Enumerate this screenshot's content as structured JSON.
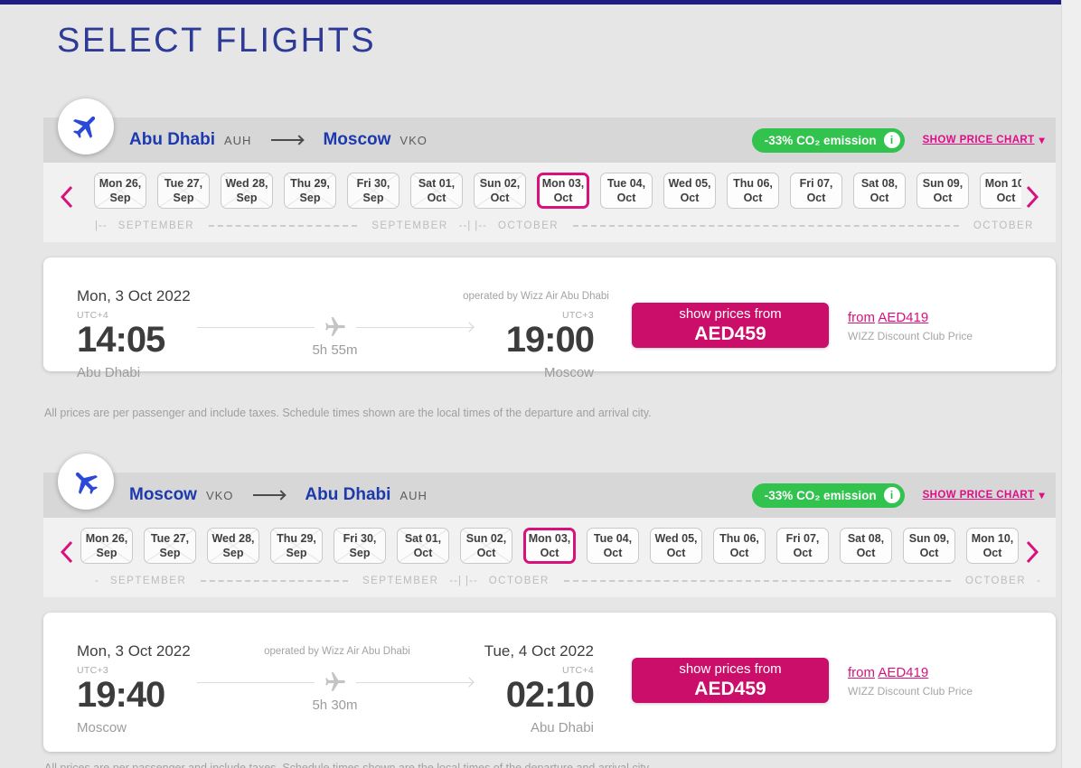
{
  "page": {
    "title": "SELECT FLIGHTS",
    "disclaimer": "All prices are per passenger and include taxes. Schedule times shown are the local times of the departure and arrival city."
  },
  "icons": {
    "info": "i",
    "caret_down": "▾"
  },
  "colors": {
    "accent_pink": "#d8127d",
    "button_pink": "#cb0e6a",
    "badge_green": "#32c24e",
    "navy": "#2d3a96"
  },
  "sections": [
    {
      "route": {
        "origin_city": "Abu Dhabi",
        "origin_code": "AUH",
        "dest_city": "Moscow",
        "dest_code": "VKO"
      },
      "co2_badge": "-33% CO₂ emission",
      "show_price_chart": "SHOW PRICE CHART",
      "dates": [
        {
          "day": "Mon 26,",
          "month": "Sep",
          "state": "crossed"
        },
        {
          "day": "Tue 27,",
          "month": "Sep",
          "state": "crossed"
        },
        {
          "day": "Wed 28,",
          "month": "Sep",
          "state": "crossed"
        },
        {
          "day": "Thu 29,",
          "month": "Sep",
          "state": "crossed"
        },
        {
          "day": "Fri 30,",
          "month": "Sep",
          "state": "crossed"
        },
        {
          "day": "Sat 01,",
          "month": "Oct",
          "state": "crossed"
        },
        {
          "day": "Sun 02,",
          "month": "Oct",
          "state": "crossed"
        },
        {
          "day": "Mon 03,",
          "month": "Oct",
          "state": "selected"
        },
        {
          "day": "Tue 04,",
          "month": "Oct",
          "state": "normal"
        },
        {
          "day": "Wed 05,",
          "month": "Oct",
          "state": "normal"
        },
        {
          "day": "Thu 06,",
          "month": "Oct",
          "state": "normal"
        },
        {
          "day": "Fri 07,",
          "month": "Oct",
          "state": "normal"
        },
        {
          "day": "Sat 08,",
          "month": "Oct",
          "state": "normal"
        },
        {
          "day": "Sun 09,",
          "month": "Oct",
          "state": "normal"
        },
        {
          "day": "Mon 10,",
          "month": "Oct",
          "state": "normal"
        }
      ],
      "timeline": [
        {
          "type": "marker",
          "text": "|--"
        },
        {
          "type": "label",
          "text": "SEPTEMBER"
        },
        {
          "type": "dash",
          "flex": 2
        },
        {
          "type": "label",
          "text": "SEPTEMBER"
        },
        {
          "type": "marker",
          "text": "--|"
        },
        {
          "type": "marker",
          "text": "|--"
        },
        {
          "type": "label",
          "text": "OCTOBER"
        },
        {
          "type": "dash",
          "flex": 5.2
        },
        {
          "type": "label",
          "text": "OCTOBER"
        }
      ],
      "flight": {
        "departure": {
          "date": "Mon, 3 Oct 2022",
          "utc": "UTC+4",
          "time": "14:05",
          "city": "Abu Dhabi"
        },
        "arrival": {
          "date": "",
          "utc": "UTC+3",
          "time": "19:00",
          "city": "Moscow"
        },
        "operated_by": "operated by Wizz Air Abu Dhabi",
        "duration": "5h 55m",
        "price_button": {
          "label": "show prices from",
          "price": "AED459"
        },
        "club_price": {
          "prefix": "from",
          "price": "AED419",
          "label": "WIZZ Discount Club Price"
        }
      }
    },
    {
      "route": {
        "origin_city": "Moscow",
        "origin_code": "VKO",
        "dest_city": "Abu Dhabi",
        "dest_code": "AUH"
      },
      "co2_badge": "-33% CO₂ emission",
      "show_price_chart": "SHOW PRICE CHART",
      "dates": [
        {
          "day": "Mon 26,",
          "month": "Sep",
          "state": "crossed"
        },
        {
          "day": "Tue 27,",
          "month": "Sep",
          "state": "crossed"
        },
        {
          "day": "Wed 28,",
          "month": "Sep",
          "state": "crossed"
        },
        {
          "day": "Thu 29,",
          "month": "Sep",
          "state": "crossed"
        },
        {
          "day": "Fri 30,",
          "month": "Sep",
          "state": "crossed"
        },
        {
          "day": "Sat 01,",
          "month": "Oct",
          "state": "crossed"
        },
        {
          "day": "Sun 02,",
          "month": "Oct",
          "state": "crossed"
        },
        {
          "day": "Mon 03,",
          "month": "Oct",
          "state": "selected"
        },
        {
          "day": "Tue 04,",
          "month": "Oct",
          "state": "normal"
        },
        {
          "day": "Wed 05,",
          "month": "Oct",
          "state": "normal"
        },
        {
          "day": "Thu 06,",
          "month": "Oct",
          "state": "normal"
        },
        {
          "day": "Fri 07,",
          "month": "Oct",
          "state": "normal"
        },
        {
          "day": "Sat 08,",
          "month": "Oct",
          "state": "normal"
        },
        {
          "day": "Sun 09,",
          "month": "Oct",
          "state": "normal"
        },
        {
          "day": "Mon 10,",
          "month": "Oct",
          "state": "normal"
        }
      ],
      "timeline": [
        {
          "type": "marker",
          "text": "-"
        },
        {
          "type": "label",
          "text": "SEPTEMBER"
        },
        {
          "type": "dash",
          "flex": 1.9
        },
        {
          "type": "label",
          "text": "SEPTEMBER"
        },
        {
          "type": "marker",
          "text": "--|"
        },
        {
          "type": "marker",
          "text": "|--"
        },
        {
          "type": "label",
          "text": "OCTOBER"
        },
        {
          "type": "dash",
          "flex": 5
        },
        {
          "type": "label",
          "text": "OCTOBER"
        },
        {
          "type": "marker",
          "text": "-"
        }
      ],
      "flight": {
        "departure": {
          "date": "Mon, 3 Oct 2022",
          "utc": "UTC+3",
          "time": "19:40",
          "city": "Moscow"
        },
        "arrival": {
          "date": "Tue, 4 Oct 2022",
          "utc": "UTC+4",
          "time": "02:10",
          "city": "Abu Dhabi"
        },
        "operated_by": "operated by Wizz Air Abu Dhabi",
        "duration": "5h 30m",
        "price_button": {
          "label": "show prices from",
          "price": "AED459"
        },
        "club_price": {
          "prefix": "from",
          "price": "AED419",
          "label": "WIZZ Discount Club Price"
        }
      }
    }
  ]
}
